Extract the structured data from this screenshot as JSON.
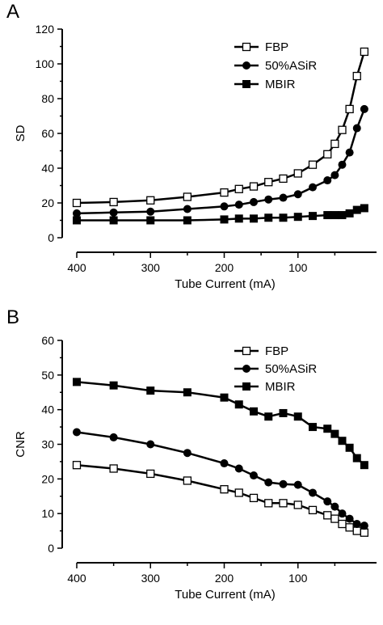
{
  "chart_data": [
    {
      "panel": "A",
      "type": "line",
      "xlabel": "Tube Current (mA)",
      "ylabel": "SD",
      "x_reversed": true,
      "xlim": [
        400,
        0
      ],
      "ylim": [
        0,
        120
      ],
      "xticks": [
        400,
        300,
        200,
        100
      ],
      "yticks": [
        0,
        20,
        40,
        60,
        80,
        100,
        120
      ],
      "legend_position": "top-right",
      "series": [
        {
          "name": "FBP",
          "marker": "open-square",
          "x": [
            400,
            350,
            300,
            250,
            200,
            180,
            160,
            140,
            120,
            100,
            80,
            60,
            50,
            40,
            30,
            20,
            10
          ],
          "y": [
            20,
            20.5,
            21.5,
            23.5,
            26,
            28,
            29.5,
            32,
            34,
            37,
            42,
            48,
            54,
            62,
            74,
            93,
            107
          ]
        },
        {
          "name": "50%ASiR",
          "marker": "filled-circle",
          "x": [
            400,
            350,
            300,
            250,
            200,
            180,
            160,
            140,
            120,
            100,
            80,
            60,
            50,
            40,
            30,
            20,
            10
          ],
          "y": [
            14,
            14.5,
            15,
            16.5,
            18,
            19,
            20.5,
            22,
            23,
            25,
            29,
            33,
            36,
            42,
            49,
            63,
            74
          ]
        },
        {
          "name": "MBIR",
          "marker": "filled-square",
          "x": [
            400,
            350,
            300,
            250,
            200,
            180,
            160,
            140,
            120,
            100,
            80,
            60,
            50,
            40,
            30,
            20,
            10
          ],
          "y": [
            10,
            10,
            10,
            10,
            10.5,
            11,
            11,
            11.5,
            11.5,
            12,
            12.5,
            13,
            13,
            13,
            14,
            16,
            17
          ]
        }
      ]
    },
    {
      "panel": "B",
      "type": "line",
      "xlabel": "Tube Current (mA)",
      "ylabel": "CNR",
      "x_reversed": true,
      "xlim": [
        400,
        0
      ],
      "ylim": [
        0,
        60
      ],
      "xticks": [
        400,
        300,
        200,
        100
      ],
      "yticks": [
        0,
        10,
        20,
        30,
        40,
        50,
        60
      ],
      "legend_position": "top-right",
      "series": [
        {
          "name": "FBP",
          "marker": "open-square",
          "x": [
            400,
            350,
            300,
            250,
            200,
            180,
            160,
            140,
            120,
            100,
            80,
            60,
            50,
            40,
            30,
            20,
            10
          ],
          "y": [
            24,
            23,
            21.5,
            19.5,
            17,
            16,
            14.5,
            13,
            13,
            12.5,
            11,
            9.5,
            8.5,
            7,
            6,
            5,
            4.5
          ]
        },
        {
          "name": "50%ASiR",
          "marker": "filled-circle",
          "x": [
            400,
            350,
            300,
            250,
            200,
            180,
            160,
            140,
            120,
            100,
            80,
            60,
            50,
            40,
            30,
            20,
            10
          ],
          "y": [
            33.5,
            32,
            30,
            27.5,
            24.5,
            23,
            21,
            19,
            18.5,
            18.3,
            16,
            13.5,
            12,
            10,
            8.5,
            7,
            6.5
          ]
        },
        {
          "name": "MBIR",
          "marker": "filled-square",
          "x": [
            400,
            350,
            300,
            250,
            200,
            180,
            160,
            140,
            120,
            100,
            80,
            60,
            50,
            40,
            30,
            20,
            10
          ],
          "y": [
            48,
            47,
            45.5,
            45,
            43.5,
            41.5,
            39.5,
            38,
            39,
            38,
            35,
            34.5,
            33,
            31,
            29,
            26,
            24
          ]
        }
      ]
    }
  ]
}
